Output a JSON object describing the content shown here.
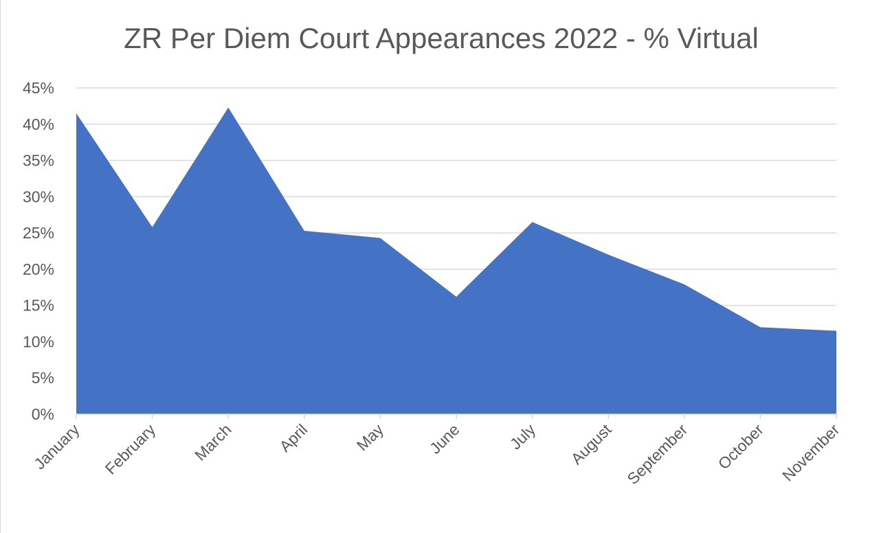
{
  "chart_data": {
    "type": "area",
    "title": "ZR Per Diem Court Appearances 2022 - % Virtual",
    "xlabel": "",
    "ylabel": "",
    "categories": [
      "January",
      "February",
      "March",
      "April",
      "May",
      "June",
      "July",
      "August",
      "September",
      "October",
      "November"
    ],
    "series": [
      {
        "values": [
          0.415,
          0.258,
          0.423,
          0.253,
          0.243,
          0.162,
          0.265,
          0.22,
          0.179,
          0.12,
          0.115
        ],
        "color": "#4472C4"
      }
    ],
    "ylim": [
      0,
      0.45
    ],
    "yticks": [
      0,
      0.05,
      0.1,
      0.15,
      0.2,
      0.25,
      0.3,
      0.35,
      0.4,
      0.45
    ],
    "ytick_labels": [
      "0%",
      "5%",
      "10%",
      "15%",
      "20%",
      "25%",
      "30%",
      "35%",
      "40%",
      "45%"
    ],
    "grid": true,
    "legend": "none",
    "colors": {
      "area": "#4472C4",
      "grid": "#d9d9d9",
      "text": "#595959"
    }
  }
}
